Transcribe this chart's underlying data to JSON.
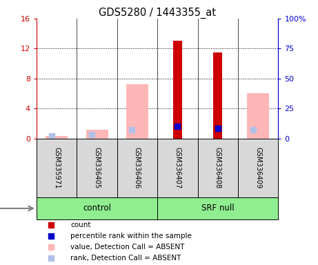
{
  "title": "GDS5280 / 1443355_at",
  "samples": [
    "GSM335971",
    "GSM336405",
    "GSM336406",
    "GSM336407",
    "GSM336408",
    "GSM336409"
  ],
  "groups": [
    "control",
    "control",
    "control",
    "SRF null",
    "SRF null",
    "SRF null"
  ],
  "count_values": [
    0.18,
    0.18,
    0.18,
    13.0,
    11.5,
    0.18
  ],
  "percentile_rank_values": [
    null,
    null,
    null,
    10.2,
    8.5,
    null
  ],
  "absent_value_values": [
    0.3,
    1.2,
    7.2,
    null,
    null,
    6.0
  ],
  "absent_rank_left": [
    2.0,
    3.5,
    7.0,
    null,
    null,
    7.0
  ],
  "ylim_left": [
    0,
    16
  ],
  "ylim_right": [
    0,
    100
  ],
  "yticks_left": [
    0,
    4,
    8,
    12,
    16
  ],
  "yticks_right": [
    0,
    25,
    50,
    75,
    100
  ],
  "ytick_labels_left": [
    "0",
    "4",
    "8",
    "12",
    "16"
  ],
  "ytick_labels_right": [
    "0",
    "25",
    "50",
    "75",
    "100%"
  ],
  "color_count": "#cc0000",
  "color_percentile": "#0000cc",
  "color_absent_value": "#ffb6b6",
  "color_absent_rank": "#b0c0e8",
  "left_axis_color": "#cc0000",
  "right_axis_color": "#0000cc",
  "sample_box_color": "#d8d8d8",
  "group_box_color": "#90ee90",
  "legend_items": [
    {
      "label": "count",
      "color": "#cc0000"
    },
    {
      "label": "percentile rank within the sample",
      "color": "#0000cc"
    },
    {
      "label": "value, Detection Call = ABSENT",
      "color": "#ffb6b6"
    },
    {
      "label": "rank, Detection Call = ABSENT",
      "color": "#b0c0e8"
    }
  ]
}
